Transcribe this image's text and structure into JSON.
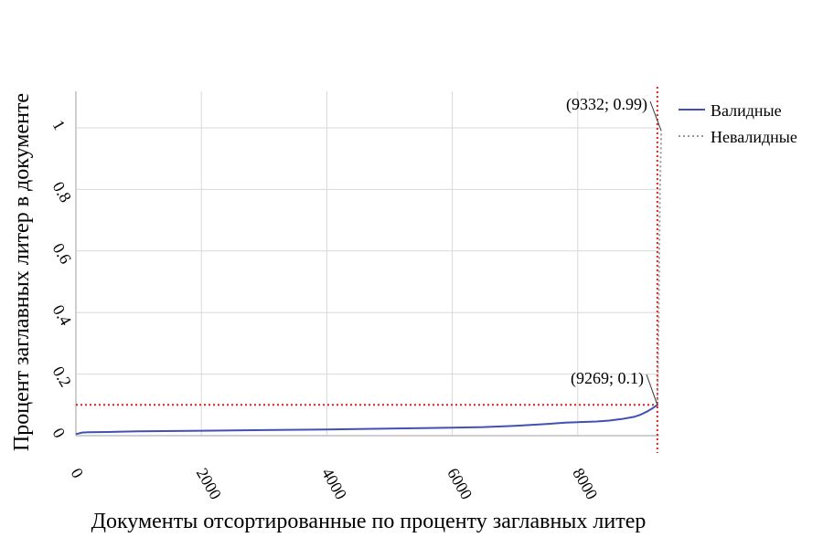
{
  "chart_data": {
    "type": "line",
    "title": "",
    "xlabel": "Документы отсортированные по проценту заглавных литер",
    "ylabel": "Процент заглавных литер в документе",
    "xlim": [
      0,
      9400
    ],
    "ylim": [
      0,
      1.1
    ],
    "x_ticks": [
      0,
      2000,
      4000,
      6000,
      8000
    ],
    "y_ticks": [
      0,
      0.2,
      0.4,
      0.6,
      0.8,
      1
    ],
    "x_tick_labels": [
      "0",
      "2000",
      "4000",
      "6000",
      "8000"
    ],
    "y_tick_labels": [
      "0",
      "0.2",
      "0.4",
      "0.6",
      "0.8",
      "1"
    ],
    "grid": true,
    "legend_position": "top-right",
    "series": [
      {
        "name": "Валидные",
        "style": "solid",
        "color": "#3f51b5",
        "x": [
          0,
          100,
          200,
          500,
          1000,
          2000,
          3000,
          4000,
          5000,
          6000,
          6500,
          7000,
          7500,
          7800,
          8000,
          8300,
          8500,
          8700,
          8900,
          9000,
          9100,
          9200,
          9269
        ],
        "y": [
          0.005,
          0.01,
          0.011,
          0.012,
          0.014,
          0.016,
          0.018,
          0.02,
          0.023,
          0.026,
          0.028,
          0.032,
          0.038,
          0.042,
          0.044,
          0.046,
          0.049,
          0.054,
          0.061,
          0.068,
          0.078,
          0.09,
          0.1
        ]
      },
      {
        "name": "Невалидные",
        "style": "dotted",
        "color": "#999999",
        "x": [
          9269,
          9290,
          9310,
          9332
        ],
        "y": [
          0.1,
          0.4,
          0.8,
          0.99
        ]
      }
    ],
    "threshold_lines": [
      {
        "axis": "x",
        "value": 9269,
        "color": "#e02020"
      },
      {
        "axis": "y",
        "value": 0.1,
        "color": "#e02020"
      }
    ],
    "annotations": [
      {
        "label": "(9332; 0.99)",
        "x": 9332,
        "y": 0.99
      },
      {
        "label": "(9269; 0.1)",
        "x": 9269,
        "y": 0.1
      }
    ]
  }
}
